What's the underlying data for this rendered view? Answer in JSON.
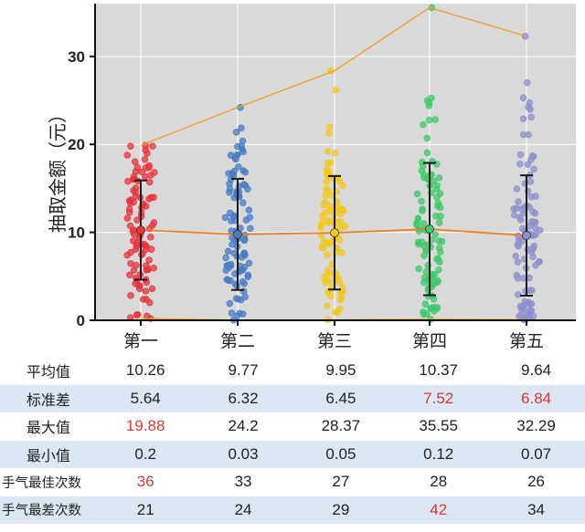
{
  "chart_data": {
    "type": "scatter",
    "ylabel": "抽取金额（元）",
    "ylim": [
      0,
      36
    ],
    "yticks": [
      0,
      10,
      20,
      30
    ],
    "categories": [
      "第一",
      "第二",
      "第三",
      "第四",
      "第五"
    ],
    "colors": [
      "#e8343c",
      "#4a7cc4",
      "#f2c81c",
      "#3fc86e",
      "#8f8fcc"
    ],
    "line_color": "#f0a020",
    "mean_line_color": "#f07d20",
    "plot_background": "#d9d9d9",
    "grid": true,
    "points_per_group": 100,
    "mean": [
      10.26,
      9.77,
      9.95,
      10.37,
      9.64
    ],
    "std": [
      5.64,
      6.32,
      6.45,
      7.52,
      6.84
    ],
    "max": [
      19.88,
      24.2,
      28.37,
      35.55,
      32.29
    ],
    "min": [
      0.2,
      0.03,
      0.05,
      0.12,
      0.07
    ]
  },
  "table": {
    "rows": [
      {
        "label": "平均值",
        "values": [
          "10.26",
          "9.77",
          "9.95",
          "10.37",
          "9.64"
        ],
        "highlight": [],
        "shade": false
      },
      {
        "label": "标准差",
        "values": [
          "5.64",
          "6.32",
          "6.45",
          "7.52",
          "6.84"
        ],
        "highlight": [
          3,
          4
        ],
        "shade": true
      },
      {
        "label": "最大值",
        "values": [
          "19.88",
          "24.2",
          "28.37",
          "35.55",
          "32.29"
        ],
        "highlight": [
          0
        ],
        "shade": false
      },
      {
        "label": "最小值",
        "values": [
          "0.2",
          "0.03",
          "0.05",
          "0.12",
          "0.07"
        ],
        "highlight": [],
        "shade": true
      },
      {
        "label": "手气最佳次数",
        "values": [
          "36",
          "33",
          "27",
          "28",
          "26"
        ],
        "highlight": [
          0
        ],
        "shade": false
      },
      {
        "label": "手气最差次数",
        "values": [
          "21",
          "24",
          "29",
          "42",
          "34"
        ],
        "highlight": [
          3
        ],
        "shade": true
      }
    ],
    "highlight_color": "#d63a3a"
  }
}
